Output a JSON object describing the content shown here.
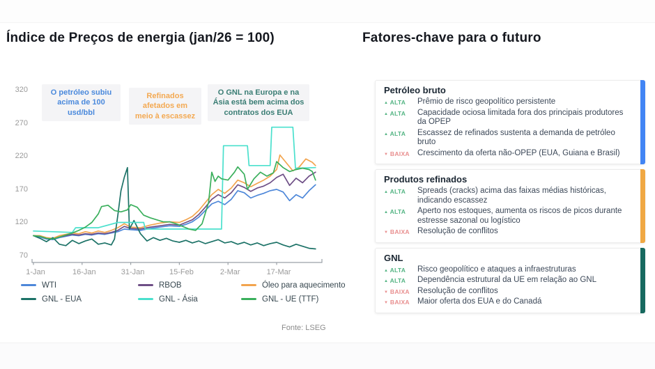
{
  "left": {
    "title": "Índice de Preços de energia (jan/26 = 100)",
    "annotations": [
      {
        "text": "O petróleo subiu acima de 100 usd/bbl",
        "color": "#4a89dc"
      },
      {
        "text": "Refinados afetados em meio à escassez",
        "color": "#f3a952"
      },
      {
        "text": "O GNL na Europa e na Ásia está bem acima dos contratos dos EUA",
        "color": "#3a7d74"
      }
    ],
    "source": "Fonte: LSEG"
  },
  "chart_data": {
    "type": "line",
    "title": "Índice de Preços de energia (jan/26 = 100)",
    "x_unit": "days from 1-Jan",
    "x_ticks": [
      {
        "day": 0,
        "label": "1-Jan"
      },
      {
        "day": 15,
        "label": "16-Jan"
      },
      {
        "day": 30,
        "label": "31-Jan"
      },
      {
        "day": 45,
        "label": "15-Feb"
      },
      {
        "day": 60,
        "label": "2-Mar"
      },
      {
        "day": 75,
        "label": "17-Mar"
      }
    ],
    "y_ticks": [
      320,
      270,
      220,
      170,
      120,
      70
    ],
    "ylim": [
      58,
      330
    ],
    "xlim": [
      0,
      89
    ],
    "grid": false,
    "legend_position": "bottom",
    "series": [
      {
        "name": "WTI",
        "color": "#4d87d9",
        "points": [
          [
            0,
            100
          ],
          [
            2,
            98
          ],
          [
            4,
            95
          ],
          [
            6,
            94
          ],
          [
            8,
            97
          ],
          [
            10,
            99
          ],
          [
            12,
            101
          ],
          [
            14,
            100
          ],
          [
            16,
            102
          ],
          [
            18,
            101
          ],
          [
            20,
            103
          ],
          [
            22,
            102
          ],
          [
            24,
            104
          ],
          [
            26,
            106
          ],
          [
            28,
            110
          ],
          [
            30,
            109
          ],
          [
            33,
            108
          ],
          [
            36,
            111
          ],
          [
            39,
            113
          ],
          [
            42,
            115
          ],
          [
            45,
            114
          ],
          [
            47,
            117
          ],
          [
            49,
            121
          ],
          [
            51,
            128
          ],
          [
            53,
            138
          ],
          [
            55,
            148
          ],
          [
            57,
            152
          ],
          [
            59,
            147
          ],
          [
            61,
            155
          ],
          [
            63,
            168
          ],
          [
            65,
            165
          ],
          [
            67,
            157
          ],
          [
            69,
            161
          ],
          [
            71,
            164
          ],
          [
            73,
            168
          ],
          [
            75,
            170
          ],
          [
            77,
            166
          ],
          [
            79,
            153
          ],
          [
            81,
            162
          ],
          [
            83,
            157
          ],
          [
            85,
            168
          ],
          [
            87,
            177
          ]
        ]
      },
      {
        "name": "RBOB",
        "color": "#6e4f86",
        "points": [
          [
            0,
            100
          ],
          [
            2,
            99
          ],
          [
            4,
            96
          ],
          [
            6,
            95
          ],
          [
            8,
            98
          ],
          [
            10,
            100
          ],
          [
            12,
            102
          ],
          [
            14,
            101
          ],
          [
            16,
            103
          ],
          [
            18,
            102
          ],
          [
            20,
            104
          ],
          [
            22,
            103
          ],
          [
            24,
            105
          ],
          [
            26,
            108
          ],
          [
            28,
            114
          ],
          [
            30,
            111
          ],
          [
            33,
            110
          ],
          [
            36,
            113
          ],
          [
            39,
            115
          ],
          [
            42,
            117
          ],
          [
            45,
            116
          ],
          [
            47,
            120
          ],
          [
            49,
            124
          ],
          [
            51,
            132
          ],
          [
            53,
            143
          ],
          [
            55,
            155
          ],
          [
            57,
            162
          ],
          [
            59,
            157
          ],
          [
            61,
            165
          ],
          [
            63,
            177
          ],
          [
            65,
            173
          ],
          [
            67,
            167
          ],
          [
            69,
            172
          ],
          [
            71,
            175
          ],
          [
            73,
            180
          ],
          [
            75,
            188
          ],
          [
            77,
            193
          ],
          [
            79,
            176
          ],
          [
            81,
            187
          ],
          [
            83,
            180
          ],
          [
            85,
            190
          ],
          [
            87,
            196
          ]
        ]
      },
      {
        "name": "Óleo para aquecimento",
        "color": "#f2a44e",
        "points": [
          [
            0,
            100
          ],
          [
            2,
            100
          ],
          [
            4,
            97
          ],
          [
            6,
            96
          ],
          [
            8,
            100
          ],
          [
            10,
            102
          ],
          [
            12,
            104
          ],
          [
            14,
            103
          ],
          [
            16,
            106
          ],
          [
            18,
            104
          ],
          [
            20,
            107
          ],
          [
            22,
            105
          ],
          [
            24,
            108
          ],
          [
            26,
            112
          ],
          [
            28,
            118
          ],
          [
            30,
            113
          ],
          [
            33,
            112
          ],
          [
            36,
            116
          ],
          [
            39,
            119
          ],
          [
            42,
            121
          ],
          [
            45,
            120
          ],
          [
            47,
            124
          ],
          [
            49,
            129
          ],
          [
            51,
            138
          ],
          [
            53,
            150
          ],
          [
            55,
            162
          ],
          [
            57,
            170
          ],
          [
            59,
            164
          ],
          [
            61,
            172
          ],
          [
            63,
            184
          ],
          [
            65,
            180
          ],
          [
            67,
            174
          ],
          [
            69,
            179
          ],
          [
            71,
            184
          ],
          [
            73,
            190
          ],
          [
            75,
            200
          ],
          [
            76,
            222
          ],
          [
            78,
            210
          ],
          [
            80,
            198
          ],
          [
            82,
            204
          ],
          [
            84,
            216
          ],
          [
            86,
            211
          ],
          [
            87,
            206
          ]
        ]
      },
      {
        "name": "GNL - EUA",
        "color": "#1c7267",
        "points": [
          [
            0,
            100
          ],
          [
            2,
            96
          ],
          [
            4,
            91
          ],
          [
            6,
            97
          ],
          [
            8,
            87
          ],
          [
            10,
            85
          ],
          [
            12,
            93
          ],
          [
            14,
            88
          ],
          [
            16,
            92
          ],
          [
            18,
            95
          ],
          [
            20,
            87
          ],
          [
            22,
            89
          ],
          [
            24,
            86
          ],
          [
            25,
            95
          ],
          [
            26,
            130
          ],
          [
            27,
            168
          ],
          [
            28,
            188
          ],
          [
            29,
            203
          ],
          [
            29.6,
            110
          ],
          [
            31,
            123
          ],
          [
            33,
            103
          ],
          [
            35,
            92
          ],
          [
            37,
            97
          ],
          [
            39,
            93
          ],
          [
            41,
            96
          ],
          [
            43,
            92
          ],
          [
            45,
            90
          ],
          [
            47,
            93
          ],
          [
            49,
            89
          ],
          [
            51,
            92
          ],
          [
            53,
            88
          ],
          [
            55,
            91
          ],
          [
            57,
            94
          ],
          [
            59,
            89
          ],
          [
            61,
            91
          ],
          [
            63,
            87
          ],
          [
            65,
            90
          ],
          [
            67,
            86
          ],
          [
            69,
            89
          ],
          [
            71,
            85
          ],
          [
            73,
            88
          ],
          [
            75,
            90
          ],
          [
            77,
            86
          ],
          [
            79,
            83
          ],
          [
            81,
            87
          ],
          [
            83,
            84
          ],
          [
            85,
            81
          ],
          [
            87,
            80
          ]
        ]
      },
      {
        "name": "GNL - Ásia",
        "color": "#4ae0cd",
        "points": [
          [
            0,
            107
          ],
          [
            6,
            106
          ],
          [
            12,
            105
          ],
          [
            13,
            112
          ],
          [
            20,
            112
          ],
          [
            26,
            120
          ],
          [
            34,
            120
          ],
          [
            34.5,
            110
          ],
          [
            45,
            110
          ],
          [
            58,
            110
          ],
          [
            58.6,
            236
          ],
          [
            66,
            236
          ],
          [
            66.5,
            206
          ],
          [
            73,
            206
          ],
          [
            73.5,
            264
          ],
          [
            80,
            264
          ],
          [
            80.8,
            202
          ],
          [
            87,
            203
          ]
        ]
      },
      {
        "name": "GNL - UE (TTF)",
        "color": "#3aaf5c",
        "points": [
          [
            0,
            100
          ],
          [
            2,
            99
          ],
          [
            4,
            96
          ],
          [
            6,
            95
          ],
          [
            8,
            98
          ],
          [
            10,
            101
          ],
          [
            12,
            104
          ],
          [
            14,
            108
          ],
          [
            16,
            113
          ],
          [
            18,
            120
          ],
          [
            20,
            133
          ],
          [
            21,
            144
          ],
          [
            23,
            146
          ],
          [
            25,
            138
          ],
          [
            27,
            136
          ],
          [
            29,
            139
          ],
          [
            30,
            147
          ],
          [
            32,
            143
          ],
          [
            34,
            131
          ],
          [
            36,
            127
          ],
          [
            38,
            124
          ],
          [
            40,
            121
          ],
          [
            42,
            121
          ],
          [
            44,
            118
          ],
          [
            46,
            114
          ],
          [
            48,
            110
          ],
          [
            50,
            108
          ],
          [
            52,
            118
          ],
          [
            54,
            150
          ],
          [
            55,
            196
          ],
          [
            56,
            182
          ],
          [
            57,
            190
          ],
          [
            58,
            186
          ],
          [
            60,
            184
          ],
          [
            62,
            196
          ],
          [
            63,
            204
          ],
          [
            65,
            193
          ],
          [
            66,
            170
          ],
          [
            68,
            186
          ],
          [
            70,
            196
          ],
          [
            72,
            190
          ],
          [
            74,
            195
          ],
          [
            75,
            212
          ],
          [
            77,
            203
          ],
          [
            79,
            197
          ],
          [
            81,
            200
          ],
          [
            83,
            202
          ],
          [
            85,
            200
          ],
          [
            86,
            197
          ],
          [
            87,
            184
          ]
        ]
      }
    ]
  },
  "right": {
    "title": "Fatores-chave para o futuro",
    "cards": [
      {
        "title": "Petróleo bruto",
        "accent": "#4285f4",
        "items": [
          {
            "trend": "ALTA",
            "text": "Prêmio de risco geopolítico persistente"
          },
          {
            "trend": "ALTA",
            "text": "Capacidade ociosa limitada fora dos principais produtores da OPEP"
          },
          {
            "trend": "ALTA",
            "text": "Escassez de refinados sustenta a demanda de petróleo bruto"
          },
          {
            "trend": "BAIXA",
            "text": "Crescimento da oferta não-OPEP (EUA, Guiana e Brasil)"
          }
        ]
      },
      {
        "title": "Produtos refinados",
        "accent": "#f0a843",
        "items": [
          {
            "trend": "ALTA",
            "text": "Spreads (cracks) acima das faixas médias históricas, indicando escassez"
          },
          {
            "trend": "ALTA",
            "text": "Aperto nos estoques, aumenta os riscos de picos durante estresse sazonal ou logístico"
          },
          {
            "trend": "BAIXA",
            "text": "Resolução de conflitos"
          }
        ]
      },
      {
        "title": "GNL",
        "accent": "#17695f",
        "items": [
          {
            "trend": "ALTA",
            "text": "Risco geopolítico e ataques a infraestruturas"
          },
          {
            "trend": "ALTA",
            "text": "Dependência estrutural da UE em relação ao GNL"
          },
          {
            "trend": "BAIXA",
            "text": "Resolução de conflitos"
          },
          {
            "trend": "BAIXA",
            "text": "Maior oferta dos EUA e do Canadá"
          }
        ]
      }
    ]
  },
  "colors": {
    "axis": "#9aa0a6",
    "tick_text": "#9a9a9a",
    "trend_up": "#53b483",
    "trend_down": "#e88e8e"
  }
}
